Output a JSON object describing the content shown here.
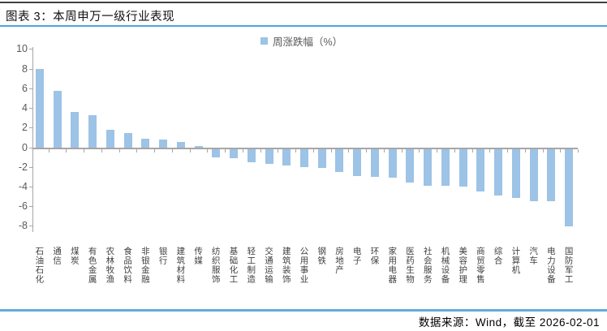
{
  "header": {
    "title": "图表 3：本周申万一级行业表现"
  },
  "footer": {
    "source_text": "数据来源：Wind，截至 2026-02-01"
  },
  "colors": {
    "bar": "#9DC3E6",
    "title_underline": "#4FA5DB",
    "footer_rule": "#61ABDB",
    "top_rule": "#404040",
    "axis": "#A6A6A6",
    "tick_label": "#595959",
    "category_label": "#404040"
  },
  "chart_data": {
    "type": "bar",
    "title": "本周申万一级行业表现",
    "legend": [
      "周涨跌幅（%）"
    ],
    "legend_position": "top-center",
    "unit": "%",
    "grid": false,
    "ylim": [
      -8,
      10
    ],
    "yticks": [
      10,
      8,
      6,
      4,
      2,
      0,
      -2,
      -4,
      -6,
      -8
    ],
    "categories": [
      "石油石化",
      "通信",
      "煤炭",
      "有色金属",
      "农林牧渔",
      "食品饮料",
      "非银金融",
      "银行",
      "建筑材料",
      "传媒",
      "纺织服饰",
      "基础化工",
      "轻工制造",
      "交通运输",
      "建筑装饰",
      "公用事业",
      "钢铁",
      "房地产",
      "电子",
      "环保",
      "家用电器",
      "医药生物",
      "社会服务",
      "机械设备",
      "美容护理",
      "商贸零售",
      "综合",
      "计算机",
      "汽车",
      "电力设备",
      "国防军工"
    ],
    "values": [
      8.0,
      5.8,
      3.6,
      3.3,
      1.8,
      1.5,
      0.9,
      0.8,
      0.6,
      0.2,
      -0.9,
      -1.0,
      -1.4,
      -1.6,
      -1.7,
      -1.9,
      -2.0,
      -2.4,
      -2.8,
      -2.9,
      -3.0,
      -3.5,
      -3.8,
      -3.8,
      -3.9,
      -4.4,
      -4.8,
      -5.0,
      -5.4,
      -5.4,
      -7.9
    ]
  }
}
